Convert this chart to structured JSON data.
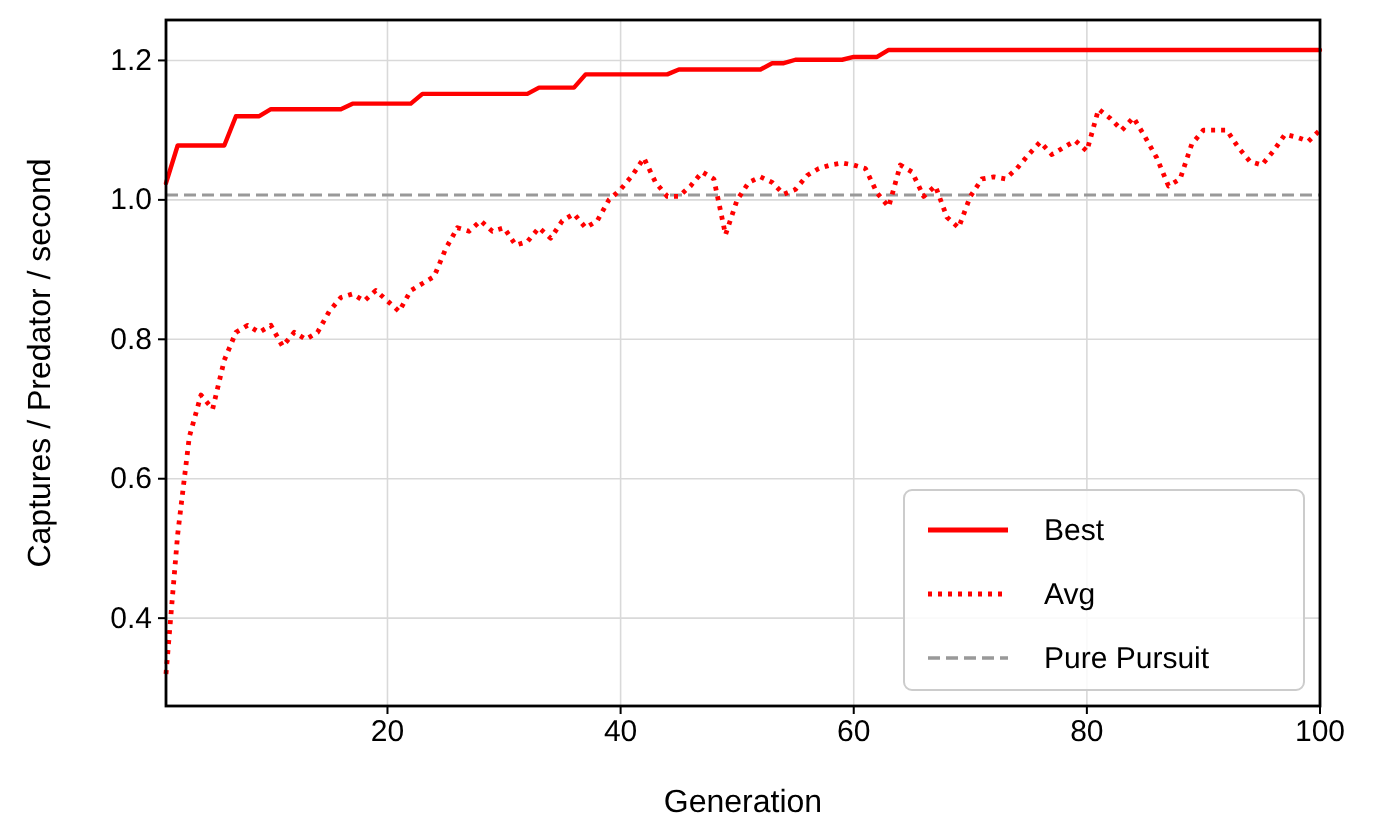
{
  "chart_data": {
    "type": "line",
    "xlabel": "Generation",
    "ylabel": "Captures / Predator / second",
    "x": [
      1,
      2,
      3,
      4,
      5,
      6,
      7,
      8,
      9,
      10,
      11,
      12,
      13,
      14,
      15,
      16,
      17,
      18,
      19,
      20,
      21,
      22,
      23,
      24,
      25,
      26,
      27,
      28,
      29,
      30,
      31,
      32,
      33,
      34,
      35,
      36,
      37,
      38,
      39,
      40,
      41,
      42,
      43,
      44,
      45,
      46,
      47,
      48,
      49,
      50,
      51,
      52,
      53,
      54,
      55,
      56,
      57,
      58,
      59,
      60,
      61,
      62,
      63,
      64,
      65,
      66,
      67,
      68,
      69,
      70,
      71,
      72,
      73,
      74,
      75,
      76,
      77,
      78,
      79,
      80,
      81,
      82,
      83,
      84,
      85,
      86,
      87,
      88,
      89,
      90,
      91,
      92,
      93,
      94,
      95,
      96,
      97,
      98,
      99,
      100
    ],
    "series": [
      {
        "name": "Best",
        "color": "#ff0000",
        "line_style": "solid",
        "values": [
          1.024,
          1.078,
          1.078,
          1.078,
          1.078,
          1.078,
          1.12,
          1.12,
          1.12,
          1.13,
          1.13,
          1.13,
          1.13,
          1.13,
          1.13,
          1.13,
          1.138,
          1.138,
          1.138,
          1.138,
          1.138,
          1.138,
          1.152,
          1.152,
          1.152,
          1.152,
          1.152,
          1.152,
          1.152,
          1.152,
          1.152,
          1.152,
          1.161,
          1.161,
          1.161,
          1.161,
          1.18,
          1.18,
          1.18,
          1.18,
          1.18,
          1.18,
          1.18,
          1.18,
          1.187,
          1.187,
          1.187,
          1.187,
          1.187,
          1.187,
          1.187,
          1.187,
          1.196,
          1.196,
          1.201,
          1.201,
          1.201,
          1.201,
          1.201,
          1.205,
          1.205,
          1.205,
          1.215,
          1.215,
          1.215,
          1.215,
          1.215,
          1.215,
          1.215,
          1.215,
          1.215,
          1.215,
          1.215,
          1.215,
          1.215,
          1.215,
          1.215,
          1.215,
          1.215,
          1.215,
          1.215,
          1.215,
          1.215,
          1.215,
          1.215,
          1.215,
          1.215,
          1.215,
          1.215,
          1.215,
          1.215,
          1.215,
          1.215,
          1.215,
          1.215,
          1.215,
          1.215,
          1.215,
          1.215,
          1.215
        ]
      },
      {
        "name": "Avg",
        "color": "#ff0000",
        "line_style": "dotted",
        "values": [
          0.32,
          0.52,
          0.66,
          0.72,
          0.7,
          0.77,
          0.81,
          0.82,
          0.81,
          0.82,
          0.79,
          0.81,
          0.8,
          0.81,
          0.84,
          0.86,
          0.865,
          0.855,
          0.87,
          0.855,
          0.84,
          0.87,
          0.88,
          0.89,
          0.93,
          0.96,
          0.955,
          0.97,
          0.955,
          0.96,
          0.935,
          0.94,
          0.96,
          0.945,
          0.97,
          0.98,
          0.96,
          0.97,
          1.0,
          1.015,
          1.035,
          1.06,
          1.025,
          1.005,
          1.005,
          1.02,
          1.04,
          1.03,
          0.95,
          1.0,
          1.025,
          1.033,
          1.025,
          1.008,
          1.015,
          1.035,
          1.045,
          1.05,
          1.053,
          1.05,
          1.045,
          1.01,
          0.99,
          1.05,
          1.04,
          1.005,
          1.02,
          0.975,
          0.96,
          1.005,
          1.03,
          1.033,
          1.03,
          1.045,
          1.065,
          1.083,
          1.065,
          1.075,
          1.085,
          1.07,
          1.13,
          1.117,
          1.1,
          1.118,
          1.09,
          1.06,
          1.02,
          1.03,
          1.08,
          1.1,
          1.1,
          1.1,
          1.075,
          1.055,
          1.05,
          1.07,
          1.094,
          1.09,
          1.084,
          1.1
        ]
      }
    ],
    "ref_lines": [
      {
        "axis": "y",
        "value": 1.007,
        "label": "Pure Pursuit",
        "color": "#999999",
        "line_style": "dashed"
      }
    ],
    "xlim": [
      1,
      100
    ],
    "xticks": [
      20,
      40,
      60,
      80,
      100
    ],
    "ylim": [
      0.274,
      1.258
    ],
    "yticks": [
      {
        "value": 0.4,
        "label": "0.4"
      },
      {
        "value": 0.6,
        "label": "0.6"
      },
      {
        "value": 0.8,
        "label": "0.8"
      },
      {
        "value": 1,
        "label": "1.0"
      },
      {
        "value": 1.2,
        "label": "1.2"
      }
    ],
    "grid": true,
    "legend": "bottom right"
  }
}
